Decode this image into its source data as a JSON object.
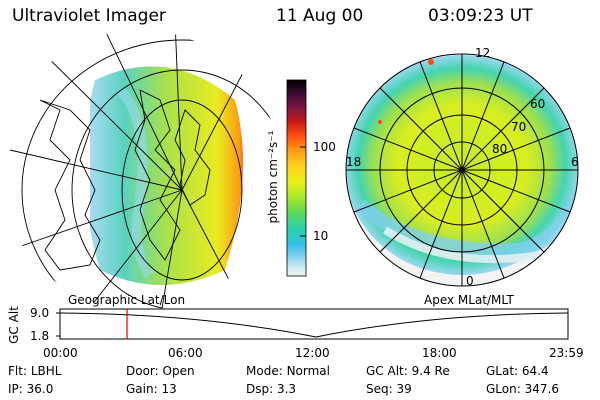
{
  "header": {
    "instrument": "Ultraviolet Imager",
    "date": "11 Aug 00",
    "time": "03:09:23 UT"
  },
  "colorbar": {
    "label": "photon cm⁻²s⁻¹",
    "ticks": [
      "100",
      "10"
    ],
    "colors": [
      "#000000",
      "#3b0b35",
      "#7a1640",
      "#c41a1a",
      "#ff4a10",
      "#ff9a10",
      "#ffd21a",
      "#e8f01a",
      "#a8e82a",
      "#55d85a",
      "#2acfae",
      "#36c2ea",
      "#8fd6f0",
      "#d6ecf4",
      "#f2f2f2"
    ]
  },
  "left_map": {
    "label": "Geographic Lat/Lon"
  },
  "right_map": {
    "label": "Apex MLat/MLT",
    "mlt_labels": [
      "12",
      "18",
      "6",
      "0"
    ],
    "lat_labels": [
      "60",
      "70",
      "80"
    ]
  },
  "timeline": {
    "axis_title": "GC Alt",
    "y_labels": [
      "9.0",
      "1.8"
    ],
    "x_labels": [
      "00:00",
      "06:00",
      "12:00",
      "18:00",
      "23:59"
    ],
    "marker_time": "03:09:23"
  },
  "footer": {
    "row1": [
      {
        "key": "Flt:",
        "value": "LBHL"
      },
      {
        "key": "Door:",
        "value": "Open"
      },
      {
        "key": "Mode:",
        "value": "Normal"
      },
      {
        "key": "GC Alt:",
        "value": "9.4 Re"
      },
      {
        "key": "GLat:",
        "value": "64.4"
      }
    ],
    "row2": [
      {
        "key": "IP:",
        "value": "36.0"
      },
      {
        "key": "Gain:",
        "value": "13"
      },
      {
        "key": "Dsp:",
        "value": "3.3"
      },
      {
        "key": "Seq:",
        "value": "39"
      },
      {
        "key": "GLon:",
        "value": "347.6"
      }
    ]
  }
}
